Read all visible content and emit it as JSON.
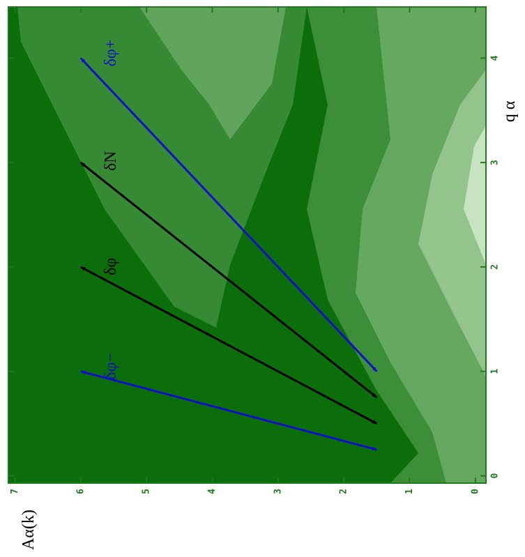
{
  "chart_data": {
    "type": "line",
    "x_label": "q α",
    "y_label": "Aα(k)",
    "xlim": [
      -0.07,
      4.49
    ],
    "ylim": [
      -0.16,
      7.1
    ],
    "xticks": [
      0,
      1,
      2,
      3,
      4
    ],
    "yticks": [
      0,
      1,
      2,
      3,
      4,
      5,
      6,
      7
    ],
    "series": [
      {
        "name": "δφ−",
        "color": "#1010c8",
        "x": [
          0.25,
          1
        ],
        "values": [
          1.5,
          6
        ]
      },
      {
        "name": "δφ",
        "color": "#000000",
        "x": [
          0.5,
          2
        ],
        "values": [
          1.5,
          6
        ]
      },
      {
        "name": "δN",
        "color": "#000000",
        "x": [
          0.75,
          3
        ],
        "values": [
          1.5,
          6
        ]
      },
      {
        "name": "δφ+",
        "color": "#1010c8",
        "x": [
          1,
          4
        ],
        "values": [
          1.5,
          6
        ]
      }
    ]
  }
}
